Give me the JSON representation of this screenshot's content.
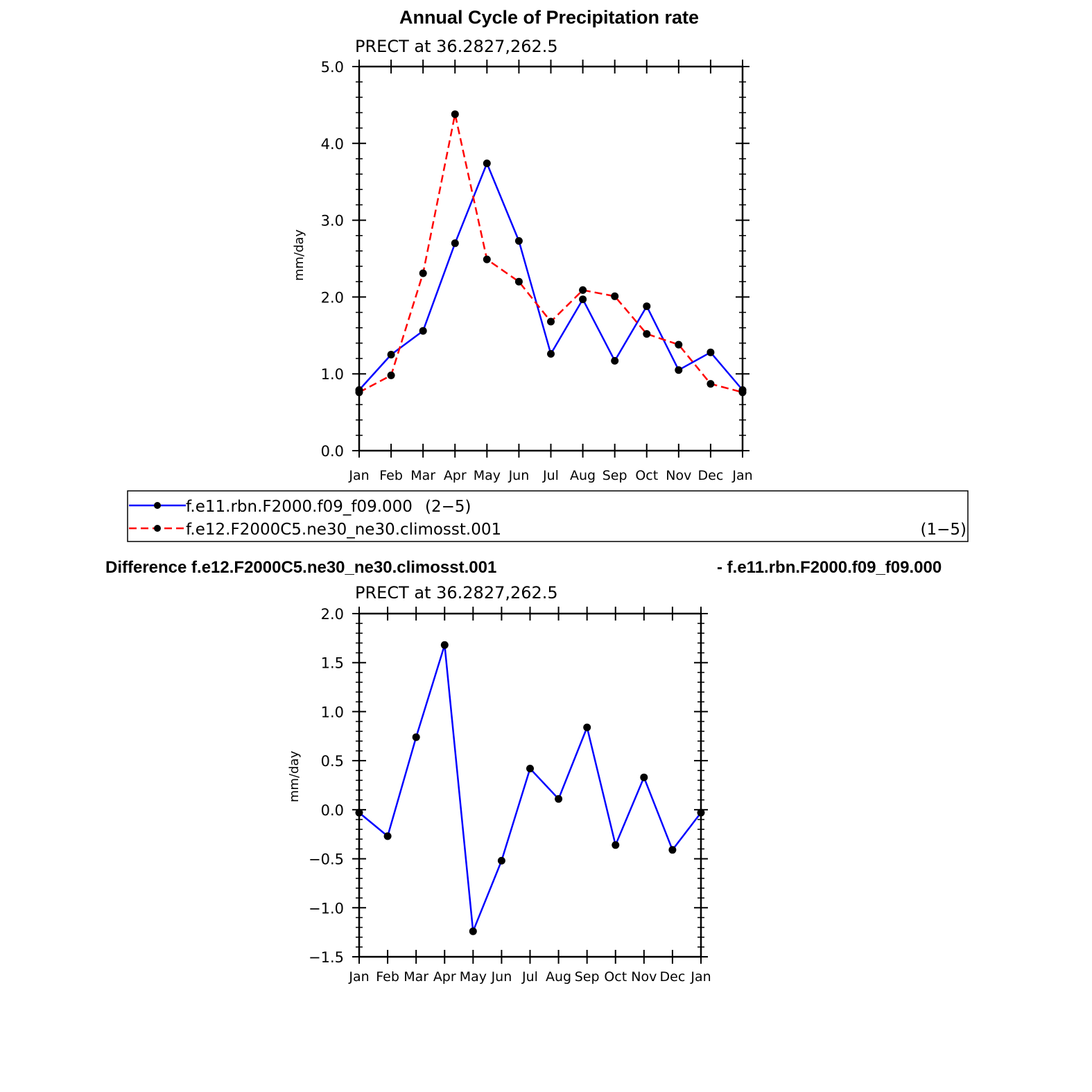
{
  "chart_data": [
    {
      "type": "line",
      "title": "Annual Cycle of Precipitation rate",
      "subtitle": "PRECT at  36.2827,262.5",
      "ylabel": "mm/day",
      "xlabel": "",
      "categories": [
        "Jan",
        "Feb",
        "Mar",
        "Apr",
        "May",
        "Jun",
        "Jul",
        "Aug",
        "Sep",
        "Oct",
        "Nov",
        "Dec",
        "Jan"
      ],
      "ylim": [
        0.0,
        5.0
      ],
      "yticks": [
        0.0,
        1.0,
        2.0,
        3.0,
        4.0,
        5.0
      ],
      "ytick_labels": [
        "0.0",
        "1.0",
        "2.0",
        "3.0",
        "4.0",
        "5.0"
      ],
      "grid": false,
      "legend": "below",
      "series": [
        {
          "name": "f.e11.rbn.F2000.f09_f09.000",
          "range": "(2−5)",
          "color": "#0000ff",
          "style": "solid",
          "values": [
            0.79,
            1.25,
            1.56,
            2.7,
            3.74,
            2.73,
            1.26,
            1.97,
            1.17,
            1.88,
            1.05,
            1.28,
            0.79
          ]
        },
        {
          "name": "f.e12.F2000C5.ne30_ne30.climosst.001",
          "range": "(1−5)",
          "color": "#ff0000",
          "style": "dashed",
          "values": [
            0.76,
            0.98,
            2.31,
            4.38,
            2.49,
            2.2,
            1.68,
            2.09,
            2.01,
            1.52,
            1.38,
            0.87,
            0.76
          ]
        }
      ]
    },
    {
      "type": "line",
      "title_left": "Difference f.e12.F2000C5.ne30_ne30.climosst.001",
      "title_right": "- f.e11.rbn.F2000.f09_f09.000",
      "subtitle": "PRECT at  36.2827,262.5",
      "ylabel": "mm/day",
      "xlabel": "",
      "categories": [
        "Jan",
        "Feb",
        "Mar",
        "Apr",
        "May",
        "Jun",
        "Jul",
        "Aug",
        "Sep",
        "Oct",
        "Nov",
        "Dec",
        "Jan"
      ],
      "ylim": [
        -1.5,
        2.0
      ],
      "yticks": [
        -1.5,
        -1.0,
        -0.5,
        0.0,
        0.5,
        1.0,
        1.5,
        2.0
      ],
      "ytick_labels": [
        "−1.5",
        "−1.0",
        "−0.5",
        "0.0",
        "0.5",
        "1.0",
        "1.5",
        "2.0"
      ],
      "grid": false,
      "series": [
        {
          "color": "#0000ff",
          "style": "solid",
          "values": [
            -0.03,
            -0.27,
            0.74,
            1.68,
            -1.24,
            -0.52,
            0.42,
            0.11,
            0.84,
            -0.36,
            0.33,
            -0.41,
            -0.03
          ]
        }
      ]
    }
  ]
}
